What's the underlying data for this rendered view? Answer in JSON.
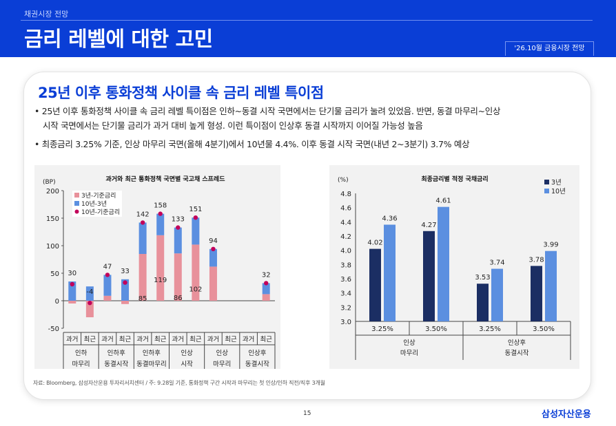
{
  "header": {
    "section": "채권시장 전망",
    "title": "금리 레벨에 대한 고민",
    "tag": "'26.10월 금융시장 전망"
  },
  "card": {
    "title": "25년 이후 통화정책 사이클 속 금리 레벨 특이점",
    "bullets": [
      "25년 이후 통화정책 사이클 속 금리 레벨 특이점은 인하~동결 시작 국면에서는 단기물 금리가 눌려 있었음. 반면, 동결 마무리~인상",
      "시작 국면에서는 단기물 금리가 과거 대비 높게 형성. 이런 특이점이 인상후 동결 시작까지 이어질 가능성 높음",
      "최종금리 3.25% 기준, 인상 마무리 국면(올해 4분기)에서 10년물 4.4%. 이후 동결 시작 국면(내년 2~3분기) 3.7% 예상"
    ]
  },
  "chart_data": [
    {
      "type": "bar",
      "title": "과거와 최근 통화정책 국면별 국고채 스프레드",
      "unit": "(BP)",
      "ylim": [
        -50,
        200
      ],
      "yticks": [
        "-50",
        "0",
        "50",
        "100",
        "150",
        "200"
      ],
      "categories": [
        "과거",
        "최근",
        "과거",
        "최근",
        "과거",
        "최근",
        "과거",
        "최근",
        "과거",
        "최근",
        "과거",
        "최근"
      ],
      "groups": [
        "인하\n마무리",
        "인하후\n동결시작",
        "인하후\n동결마무리",
        "인상\n시작",
        "인상\n마무리",
        "인상후\n동결시작"
      ],
      "series": [
        {
          "name": "3년-기준금리",
          "color": "#e8919b",
          "values": [
            -5,
            -30,
            9,
            -6,
            85,
            119,
            86,
            102,
            62,
            null,
            null,
            12
          ]
        },
        {
          "name": "10년-3년",
          "color": "#5b8fe0",
          "values": [
            35,
            26,
            38,
            39,
            57,
            39,
            47,
            49,
            32,
            null,
            null,
            20
          ]
        },
        {
          "name": "10년-기준금리",
          "color": "#c2005a",
          "type": "scatter",
          "values": [
            30,
            -4,
            47,
            33,
            142,
            158,
            133,
            151,
            94,
            null,
            null,
            32
          ]
        }
      ],
      "labels_total": [
        "30",
        "-4",
        "47",
        "33",
        "142",
        "158",
        "133",
        "151",
        "94",
        "",
        "",
        "32"
      ],
      "labels_inner": [
        "",
        "",
        "",
        "",
        "85",
        "119",
        "86",
        "102",
        "",
        "",
        "",
        ""
      ]
    },
    {
      "type": "bar",
      "title": "최종금리별 적정 국채금리",
      "unit": "(%)",
      "ylim": [
        3.0,
        4.8
      ],
      "yticks": [
        "3.0",
        "3.2",
        "3.4",
        "3.6",
        "3.8",
        "4.0",
        "4.2",
        "4.4",
        "4.6",
        "4.8"
      ],
      "categories": [
        "3.25%",
        "3.50%",
        "3.25%",
        "3.50%"
      ],
      "groups": [
        "인상\n마무리",
        "인상후\n동결시작"
      ],
      "series": [
        {
          "name": "3년",
          "color": "#1b2e63",
          "values": [
            4.02,
            4.27,
            3.53,
            3.78
          ]
        },
        {
          "name": "10년",
          "color": "#5b8fe0",
          "values": [
            4.36,
            4.61,
            3.74,
            3.99
          ]
        }
      ],
      "labels_3y": [
        "4.02",
        "4.27",
        "3.53",
        "3.78"
      ],
      "labels_10y": [
        "4.36",
        "4.61",
        "3.74",
        "3.99"
      ]
    }
  ],
  "footnote": "자료: Bloomberg, 삼성자산운용 투자리서치센터 / 주: 9.28일 기준, 통화정책 구간 시작과 마무리는 첫 인상/인하 직전/직후 3개월",
  "page_number": "15",
  "brand": "삼성자산운용"
}
